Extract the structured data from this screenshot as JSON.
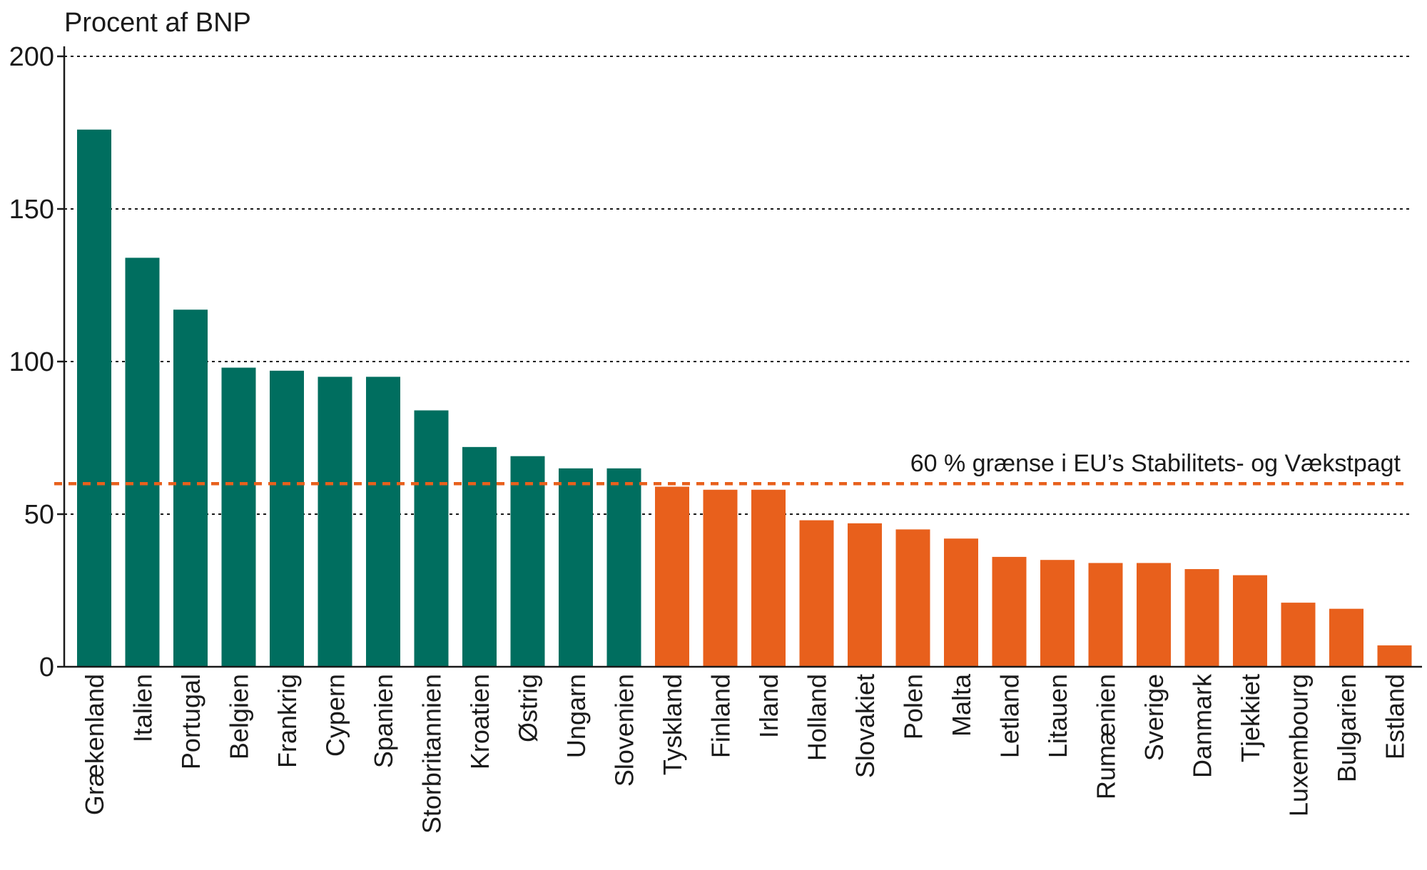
{
  "chart_data": {
    "type": "bar",
    "title": "",
    "xlabel": "",
    "ylabel": "Procent af BNP",
    "ylim": [
      0,
      200
    ],
    "yticks": [
      0,
      50,
      100,
      150,
      200
    ],
    "grid": true,
    "categories": [
      "Grækenland",
      "Italien",
      "Portugal",
      "Belgien",
      "Frankrig",
      "Cypern",
      "Spanien",
      "Storbritannien",
      "Kroatien",
      "Østrig",
      "Ungarn",
      "Slovenien",
      "Tyskland",
      "Finland",
      "Irland",
      "Holland",
      "Slovakiet",
      "Polen",
      "Malta",
      "Letland",
      "Litauen",
      "Rumænien",
      "Sverige",
      "Danmark",
      "Tjekkiet",
      "Luxembourg",
      "Bulgarien",
      "Estland"
    ],
    "values": [
      176,
      134,
      117,
      98,
      97,
      95,
      95,
      84,
      72,
      69,
      65,
      65,
      59,
      58,
      58,
      48,
      47,
      45,
      42,
      36,
      35,
      34,
      34,
      32,
      30,
      21,
      19,
      7
    ],
    "reference_line": {
      "value": 60,
      "label": "60 % grænse i EU’s Stabilitets- og Vækstpagt",
      "color": "#e8601c"
    },
    "colors": {
      "above_limit": "#006e5f",
      "below_limit": "#e8601c",
      "axis": "#1a1a1a",
      "grid": "#1a1a1a"
    }
  }
}
